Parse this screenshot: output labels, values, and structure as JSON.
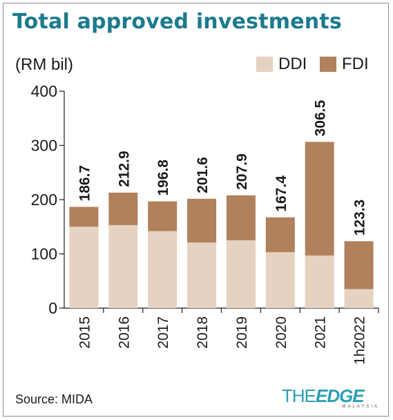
{
  "title": "Total approved investments",
  "unit_label": "(RM bil)",
  "legend": [
    {
      "label": "DDI",
      "color": "#e6d2c0"
    },
    {
      "label": "FDI",
      "color": "#b1805c"
    }
  ],
  "source": "Source: MIDA",
  "logo": {
    "the": "THE",
    "edge": "EDGE",
    "sub": "MALAYSIA"
  },
  "chart_data": {
    "type": "bar",
    "stacked": true,
    "categories": [
      "2015",
      "2016",
      "2017",
      "2018",
      "2019",
      "2020",
      "2021",
      "1h2022"
    ],
    "series": [
      {
        "name": "DDI",
        "color": "#e6d2c0",
        "values": [
          150.0,
          153.0,
          142.0,
          121.0,
          125.0,
          103.0,
          97.0,
          35.0
        ]
      },
      {
        "name": "FDI",
        "color": "#b1805c",
        "values": [
          36.7,
          59.9,
          54.8,
          80.6,
          82.9,
          64.4,
          209.5,
          88.3
        ]
      }
    ],
    "totals": [
      "186.7",
      "212.9",
      "196.8",
      "201.6",
      "207.9",
      "167.4",
      "306.5",
      "123.3"
    ],
    "y_ticks": [
      "0",
      "100",
      "200",
      "300",
      "400"
    ],
    "ylim": [
      0,
      400
    ],
    "grid": false,
    "legend_position": "top-right"
  }
}
